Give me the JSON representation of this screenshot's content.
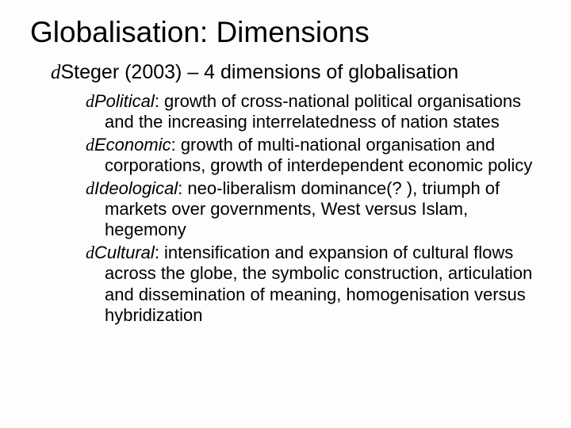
{
  "title": "Globalisation: Dimensions",
  "level1_bullet": "d",
  "level1_text": "Steger (2003) – 4 dimensions of globalisation",
  "items": [
    {
      "bullet": "d",
      "label": "Political",
      "desc": ": growth of cross-national political organisations and the increasing interrelatedness of nation states"
    },
    {
      "bullet": "d",
      "label": "Economic",
      "desc": ": growth of multi-national organisation and corporations, growth of interdependent economic policy"
    },
    {
      "bullet": "d",
      "label": "Ideological",
      "desc": ": neo-liberalism dominance(? ), triumph of markets over governments, West versus Islam, hegemony"
    },
    {
      "bullet": "d",
      "label": "Cultural",
      "desc": ": intensification and expansion of cultural flows across the globe, the symbolic construction, articulation and dissemination of meaning, homogenisation versus hybridization"
    }
  ],
  "colors": {
    "background": "#fdfdfb",
    "text": "#000000"
  }
}
